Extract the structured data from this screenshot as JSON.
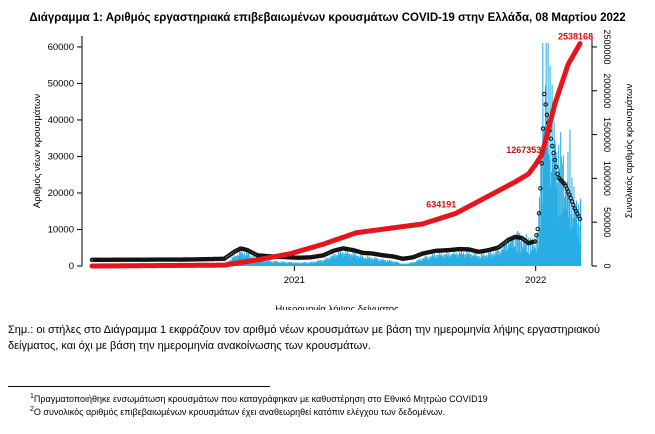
{
  "header": {
    "title": "Διάγραμμα 1: Αριθμός εργαστηριακά επιβεβαιωμένων κρουσμάτων COVID-19 στην Ελλάδα, 08 Μαρτίου 2022"
  },
  "chart_data": {
    "type": "bar",
    "title": "Διάγραμμα 1: Αριθμός εργαστηριακά επιβεβαιωμένων κρουσμάτων COVID-19 στην Ελλάδα, 08 Μαρτίου 2022",
    "xlabel": "Ημερομηνία λήψης δείγματος",
    "ylabel": "Αριθμός νέων κρουσμάτων",
    "y2label": "Συνολικός αριθμός κρουσμάτων",
    "ylim": [
      0,
      63000
    ],
    "y2lim": [
      0,
      2625000
    ],
    "yticks": [
      "0",
      "10000",
      "20000",
      "30000",
      "40000",
      "50000",
      "60000"
    ],
    "y2ticks": [
      "0",
      "500000",
      "1000000",
      "1500000",
      "2000000",
      "2500000"
    ],
    "xticks": [
      "2021",
      "2022"
    ],
    "time_range_days": [
      0,
      738
    ],
    "xtick_days": [
      306,
      671
    ],
    "colors": {
      "bars": "#29aee3",
      "cumulative": "#e8141c",
      "moving_average": "#111111",
      "label": "#cc1111"
    },
    "daily_new_cases_knots": {
      "day": [
        0,
        150,
        200,
        215,
        225,
        235,
        250,
        270,
        290,
        310,
        330,
        350,
        365,
        380,
        395,
        410,
        425,
        440,
        455,
        470,
        485,
        500,
        520,
        540,
        555,
        570,
        585,
        600,
        615,
        630,
        640,
        650,
        660,
        670,
        675,
        680,
        684,
        688,
        695,
        705,
        715,
        722,
        730,
        738
      ],
      "cases": [
        200,
        300,
        500,
        2500,
        3500,
        3000,
        1500,
        1200,
        1000,
        800,
        900,
        1500,
        2800,
        3500,
        3000,
        2200,
        2000,
        1500,
        1200,
        500,
        900,
        2000,
        2800,
        3000,
        3300,
        3200,
        2500,
        3000,
        3800,
        6000,
        6800,
        6500,
        5000,
        5500,
        10000,
        28000,
        48000,
        42000,
        34000,
        24000,
        22000,
        19000,
        15000,
        12000
      ]
    },
    "cumulative_knots": {
      "day": [
        0,
        200,
        250,
        300,
        350,
        400,
        450,
        500,
        550,
        600,
        640,
        660,
        670,
        680,
        690,
        700,
        720,
        738
      ],
      "total": [
        0,
        10000,
        70000,
        140000,
        250000,
        380000,
        430000,
        480000,
        600000,
        800000,
        960000,
        1050000,
        1150000,
        1267353,
        1550000,
        1850000,
        2300000,
        2538168
      ]
    },
    "labels": [
      {
        "text": "634191",
        "day": 560,
        "value": 634191
      },
      {
        "text": "1267353",
        "day": 668,
        "value": 1267353
      },
      {
        "text": "2538168",
        "day": 732,
        "value": 2538168
      }
    ]
  },
  "note": "Σημ.: οι στήλες στο Διάγραμμα 1 εκφράζουν τον αριθμό νέων κρουσμάτων με βάση την ημερομηνία λήψης εργαστηριακού δείγματος, και όχι με βάση την ημερομηνία ανακοίνωσης των κρουσμάτων.",
  "footnotes": [
    {
      "mark": "1",
      "text": "Πραγματοποιήθηκε ενσωμάτωση κρουσμάτων που καταγράφηκαν με καθυστέρηση στο Εθνικό Μητρώο COVID19"
    },
    {
      "mark": "2",
      "text": "Ο συνολικός αριθμός επιβεβαιωμένων κρουσμάτων έχει αναθεωρηθεί κατόπιν ελέγχου των δεδομένων."
    }
  ]
}
